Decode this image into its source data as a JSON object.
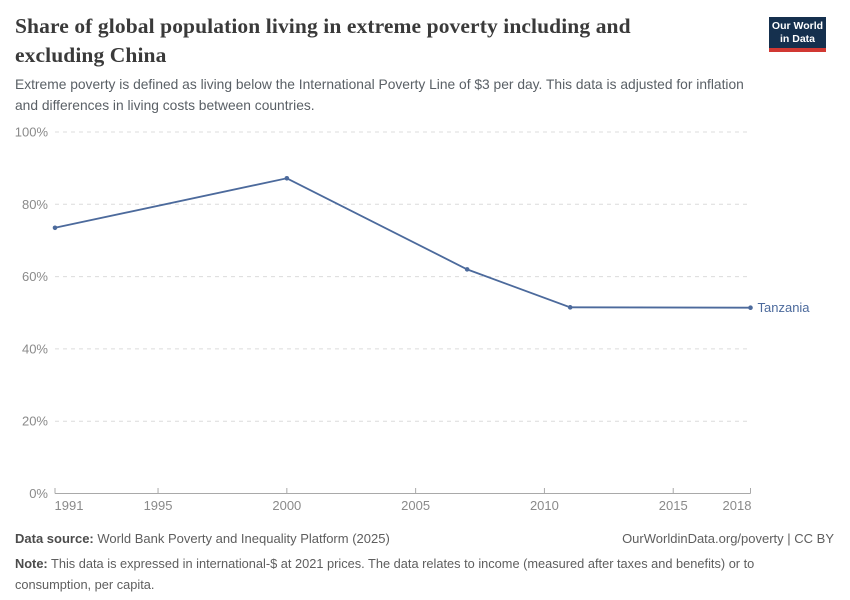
{
  "header": {
    "title_lines": [
      "Share of global population living in extreme poverty including and",
      "excluding China"
    ],
    "logo": {
      "line1": "Our World",
      "line2": "in Data"
    }
  },
  "subtitle_lines": [
    "Extreme poverty is defined as living below the International Poverty Line of $3 per day. This data is adjusted for inflation",
    "and differences in living costs between countries."
  ],
  "chart_data": {
    "type": "line",
    "title": "Share of global population living in extreme poverty including and excluding China",
    "xlabel": "",
    "ylabel": "",
    "xlim": [
      1991,
      2018
    ],
    "ylim": [
      0,
      100
    ],
    "x_ticks": [
      1991,
      1995,
      2000,
      2005,
      2010,
      2015,
      2018
    ],
    "y_ticks": [
      0,
      20,
      40,
      60,
      80,
      100
    ],
    "y_tick_suffix": "%",
    "grid": "horizontal-dashed",
    "legend_position": "end-of-line-label",
    "series": [
      {
        "name": "Tanzania",
        "color": "#4c6a9c",
        "x": [
          1991,
          2000,
          2007,
          2011,
          2018
        ],
        "y": [
          73.5,
          87.2,
          62.0,
          51.5,
          51.4
        ],
        "end_label": "Tanzania"
      }
    ]
  },
  "colors": {
    "line": "#4c6a9c",
    "logo_background": "#15304e",
    "logo_accent": "#d13832",
    "gridline": "#dcdcdc",
    "axis": "#a9a9a9",
    "tick_text": "#8a8a8a"
  },
  "footer": {
    "source_label": "Data source:",
    "source_text": "World Bank Poverty and Inequality Platform (2025)",
    "credit": "OurWorldinData.org/poverty | CC BY",
    "note_label": "Note:",
    "note_lines": [
      "This data is expressed in international-$ at 2021 prices. The data relates to income (measured after taxes and benefits) or to",
      "consumption, per capita."
    ]
  }
}
